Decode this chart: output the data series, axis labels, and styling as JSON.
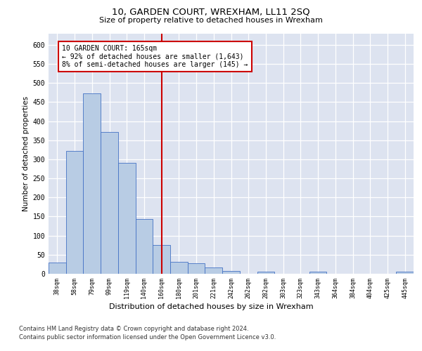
{
  "title": "10, GARDEN COURT, WREXHAM, LL11 2SQ",
  "subtitle": "Size of property relative to detached houses in Wrexham",
  "xlabel": "Distribution of detached houses by size in Wrexham",
  "ylabel": "Number of detached properties",
  "categories": [
    "38sqm",
    "58sqm",
    "79sqm",
    "99sqm",
    "119sqm",
    "140sqm",
    "160sqm",
    "180sqm",
    "201sqm",
    "221sqm",
    "242sqm",
    "262sqm",
    "282sqm",
    "303sqm",
    "323sqm",
    "343sqm",
    "364sqm",
    "384sqm",
    "404sqm",
    "425sqm",
    "445sqm"
  ],
  "values": [
    30,
    322,
    472,
    371,
    290,
    143,
    75,
    31,
    28,
    16,
    8,
    0,
    5,
    0,
    0,
    5,
    0,
    0,
    0,
    0,
    5
  ],
  "bar_color": "#b8cce4",
  "bar_edge_color": "#4472c4",
  "highlight_index": 6,
  "highlight_line_color": "#cc0000",
  "annotation_line1": "10 GARDEN COURT: 165sqm",
  "annotation_line2": "← 92% of detached houses are smaller (1,643)",
  "annotation_line3": "8% of semi-detached houses are larger (145) →",
  "annotation_box_color": "#ffffff",
  "annotation_box_edge_color": "#cc0000",
  "ylim": [
    0,
    630
  ],
  "yticks": [
    0,
    50,
    100,
    150,
    200,
    250,
    300,
    350,
    400,
    450,
    500,
    550,
    600
  ],
  "footnote1": "Contains HM Land Registry data © Crown copyright and database right 2024.",
  "footnote2": "Contains public sector information licensed under the Open Government Licence v3.0.",
  "fig_bg_color": "#ffffff",
  "plot_bg_color": "#dde3f0"
}
